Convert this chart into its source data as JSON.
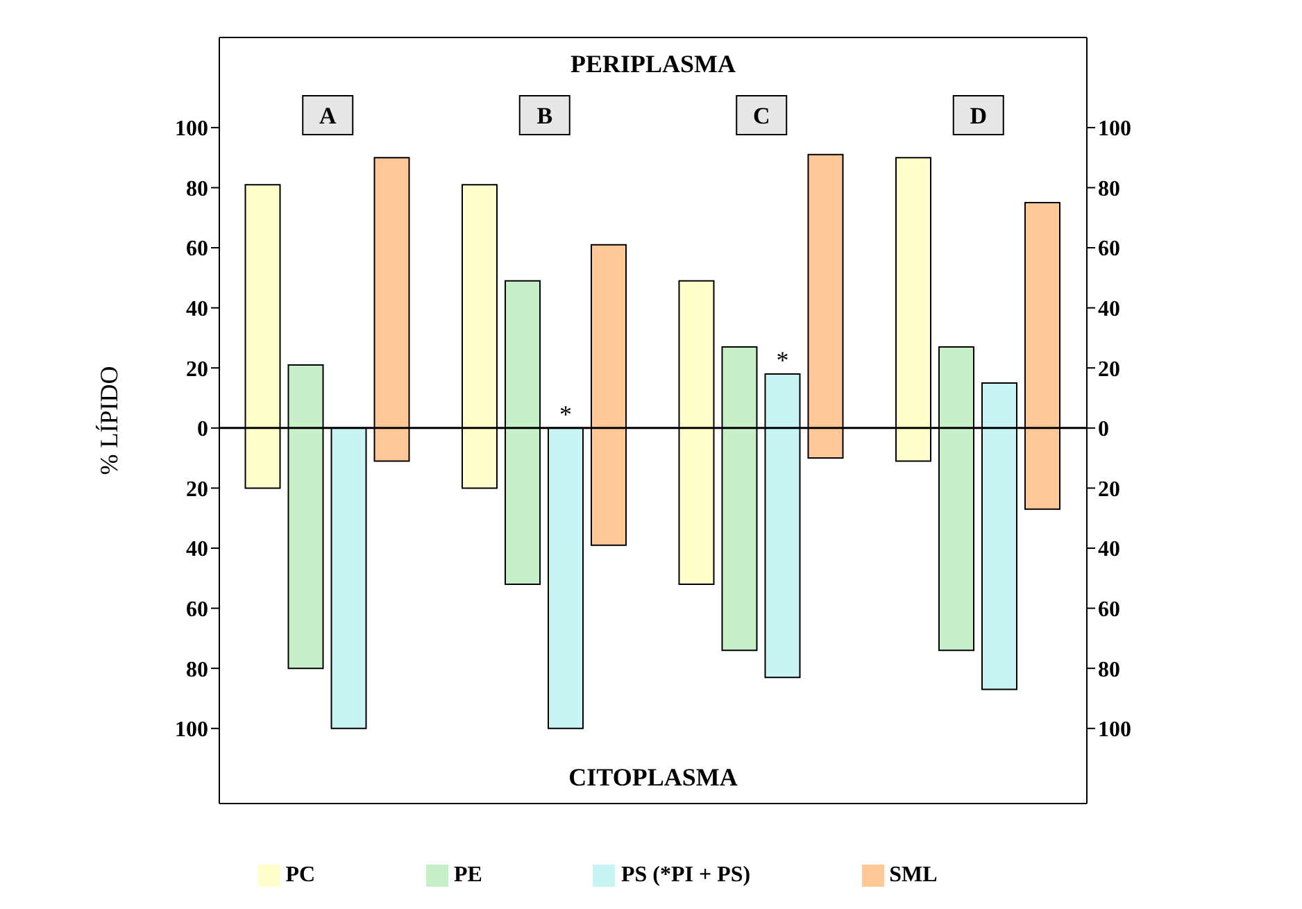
{
  "chart_data": {
    "type": "bar",
    "ylabel": "% LÍPIDO",
    "categories": [
      "A",
      "B",
      "C",
      "D"
    ],
    "series": [
      {
        "name": "PC",
        "color": "#ffffcc",
        "values": [
          101,
          101,
          101,
          101
        ],
        "base": [
          -20,
          -20,
          -52,
          -11
        ]
      },
      {
        "name": "PE",
        "color": "#c8f0c8",
        "values": [
          101,
          101,
          101,
          101
        ],
        "base": [
          -80,
          -52,
          -74,
          -74
        ]
      },
      {
        "name": "PS (*PI + PS)",
        "color": "#c8f4f4",
        "values": [
          100,
          100,
          101,
          102
        ],
        "base": [
          -100,
          -100,
          -83,
          -87
        ]
      },
      {
        "name": "SML",
        "color": "#ffc896",
        "values": [
          101,
          100,
          101,
          102
        ],
        "base": [
          -11,
          -39,
          -10,
          -27
        ]
      }
    ],
    "ylim": [
      -125,
      130
    ],
    "yticks": [
      {
        "value": -100,
        "label": "100"
      },
      {
        "value": -80,
        "label": "80"
      },
      {
        "value": -60,
        "label": "60"
      },
      {
        "value": -40,
        "label": "40"
      },
      {
        "value": -20,
        "label": "20"
      },
      0,
      20,
      40,
      60,
      80,
      100
    ],
    "y2lim": [
      -125,
      130
    ],
    "y2ticks": [
      {
        "value": -100,
        "label": "100"
      },
      {
        "value": -80,
        "label": "80"
      },
      {
        "value": -60,
        "label": "60"
      },
      {
        "value": -40,
        "label": "40"
      },
      {
        "value": -20,
        "label": "20"
      },
      0,
      20,
      40,
      60,
      80,
      100
    ],
    "ref_lines": [
      {
        "axis": "y",
        "value": 0,
        "color": "#000000"
      }
    ],
    "annotations": [
      "PERIPLASMA",
      "CITOPLASMA",
      {
        "text": "*",
        "x": "B",
        "y": 0
      },
      {
        "text": "*",
        "x": "C",
        "y": 18
      }
    ],
    "grid": false,
    "legend": "bottom"
  }
}
